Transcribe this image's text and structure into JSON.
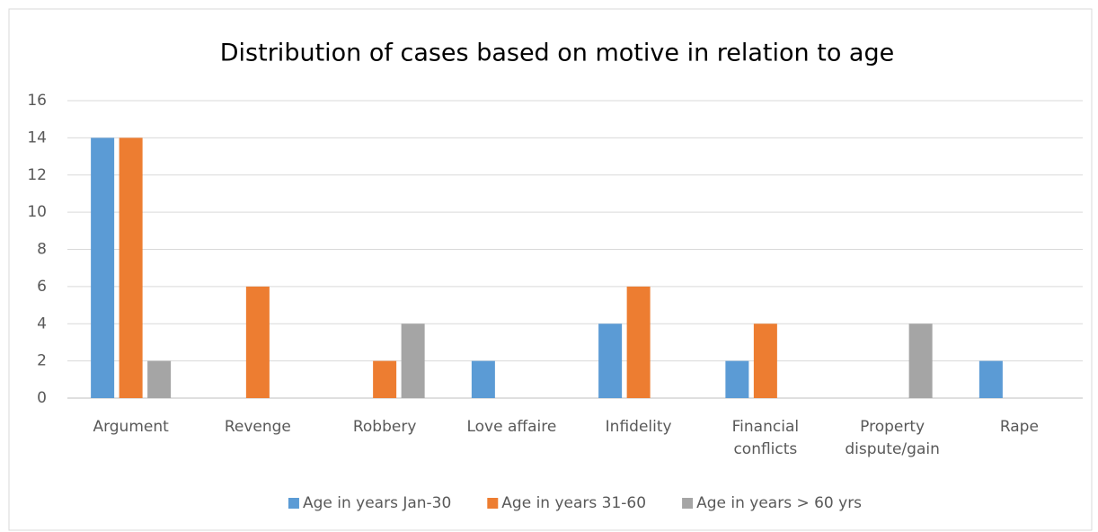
{
  "chart_data": {
    "type": "bar",
    "title": "Distribution of cases based on motive in relation to age",
    "categories": [
      "Argument",
      "Revenge",
      "Robbery",
      "Love affaire",
      "Infidelity",
      "Financial conflicts",
      "Property dispute/gain",
      "Rape"
    ],
    "series": [
      {
        "name": "Age in years Jan-30",
        "color": "#5b9bd5",
        "values": [
          14,
          0,
          0,
          2,
          4,
          2,
          0,
          2
        ]
      },
      {
        "name": "Age in years 31-60",
        "color": "#ed7d31",
        "values": [
          14,
          6,
          2,
          0,
          6,
          4,
          0,
          0
        ]
      },
      {
        "name": "Age in years > 60 yrs",
        "color": "#a5a5a5",
        "values": [
          2,
          0,
          4,
          0,
          0,
          0,
          4,
          0
        ]
      }
    ],
    "ylim": [
      0,
      16
    ],
    "yticks": [
      0,
      2,
      4,
      6,
      8,
      10,
      12,
      14,
      16
    ],
    "grid": true,
    "legend": "bottom"
  }
}
